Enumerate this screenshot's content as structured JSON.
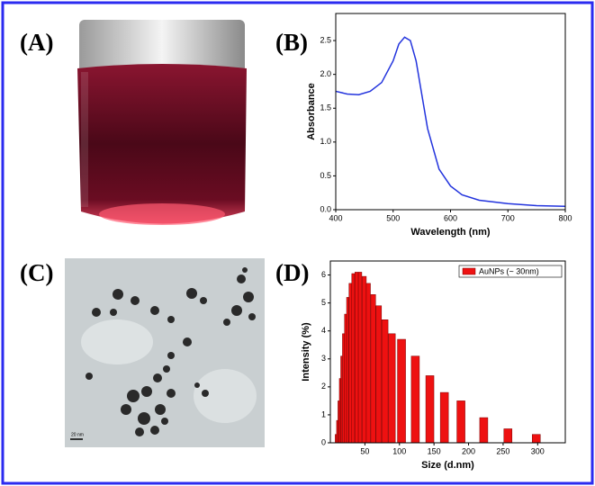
{
  "panel_labels": [
    "(A)",
    "(B)",
    "(C)",
    "(D)"
  ],
  "scale_bar": "20 nm",
  "chart_data": [
    {
      "type": "line",
      "xlabel": "Wavelength (nm)",
      "ylabel": "Absorbance",
      "x": [
        400,
        420,
        440,
        460,
        480,
        500,
        510,
        520,
        530,
        540,
        550,
        560,
        580,
        600,
        620,
        650,
        700,
        750,
        800
      ],
      "values": [
        1.75,
        1.71,
        1.7,
        1.75,
        1.88,
        2.2,
        2.45,
        2.55,
        2.5,
        2.2,
        1.7,
        1.2,
        0.6,
        0.35,
        0.22,
        0.14,
        0.09,
        0.06,
        0.05
      ],
      "color": "#2233dd",
      "xlim": [
        400,
        800
      ],
      "xticks": [
        400,
        500,
        600,
        700,
        800
      ],
      "ylim": [
        0,
        2.9
      ],
      "yticks": [
        {
          "value": 0,
          "label": "0.0"
        },
        0.5,
        {
          "value": 1,
          "label": "1.0"
        },
        1.5,
        {
          "value": 2,
          "label": "2.0"
        },
        2.5
      ]
    },
    {
      "type": "bar",
      "xlabel": "Size (d.nm)",
      "ylabel": "Intensity (%)",
      "x": [
        8,
        10,
        12,
        14,
        16,
        19,
        22,
        25,
        29,
        33,
        38,
        43,
        49,
        55,
        62,
        70,
        79,
        89,
        103,
        123,
        144,
        165,
        189,
        222,
        257,
        298
      ],
      "series": [
        {
          "name": "AuNPs (~ 30nm)",
          "color": "#ee1111",
          "values": [
            0.3,
            0.8,
            1.5,
            2.3,
            3.1,
            3.9,
            4.6,
            5.2,
            5.7,
            6.05,
            6.1,
            6.1,
            5.95,
            5.7,
            5.3,
            4.9,
            4.4,
            3.9,
            3.7,
            3.1,
            2.4,
            1.8,
            1.5,
            0.9,
            0.5,
            0.3
          ]
        }
      ],
      "legend": "upper right",
      "xlim": [
        0,
        340
      ],
      "xticks": [
        50,
        100,
        150,
        200,
        250,
        300
      ],
      "ylim": [
        0,
        6.5
      ],
      "yticks": [
        0,
        1,
        2,
        3,
        4,
        5,
        6
      ]
    }
  ]
}
